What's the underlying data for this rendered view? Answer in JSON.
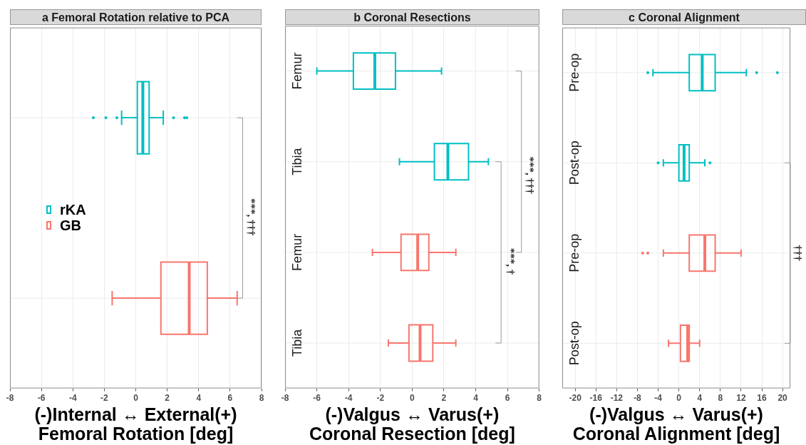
{
  "chart_data": [
    {
      "type": "box",
      "orientation": "horizontal",
      "title": "a Femoral Rotation relative to PCA",
      "xlabel": "(-)Internal ↔ External(+)\nFemoral Rotation [deg]",
      "categories": [
        null,
        null
      ],
      "xlim": [
        -8,
        8
      ],
      "xticks": [
        -8,
        -6,
        -4,
        -2,
        0,
        2,
        4,
        6,
        8
      ],
      "grid": true,
      "legend": "left",
      "series": [
        {
          "name": "rKA",
          "color": "#00bfc4",
          "boxes": [
            {
              "low": -0.9,
              "q1": 0.1,
              "median": 0.45,
              "q3": 0.85,
              "high": 1.75,
              "outliers": [
                -2.7,
                -1.9,
                -1.2,
                2.4,
                3.1,
                3.25
              ]
            },
            null
          ]
        },
        {
          "name": "GB",
          "color": "#f8766d",
          "boxes": [
            null,
            {
              "low": -1.5,
              "q1": 1.6,
              "median": 3.4,
              "q3": 4.55,
              "high": 6.45
            }
          ]
        }
      ],
      "annotations": [
        "***, †††"
      ]
    },
    {
      "type": "box",
      "orientation": "horizontal",
      "title": "b Coronal Resections",
      "xlabel": "(-)Valgus ↔ Varus(+)\nCoronal Resection [deg]",
      "categories": [
        "Femur",
        "Tibia",
        "Femur",
        "Tibia"
      ],
      "xlim": [
        -8,
        8
      ],
      "xticks": [
        -8,
        -6,
        -4,
        -2,
        0,
        2,
        4,
        6,
        8
      ],
      "grid": true,
      "series": [
        {
          "color": "#00bfc4",
          "boxes": [
            {
              "low": -6.0,
              "q1": -3.7,
              "median": -2.35,
              "q3": -1.05,
              "high": 1.85
            },
            {
              "low": -0.8,
              "q1": 1.4,
              "median": 2.25,
              "q3": 3.55,
              "high": 4.8
            },
            null,
            null
          ]
        },
        {
          "color": "#f8766d",
          "boxes": [
            null,
            null,
            {
              "low": -2.5,
              "q1": -0.7,
              "median": 0.35,
              "q3": 1.05,
              "high": 2.75
            },
            {
              "low": -1.5,
              "q1": -0.2,
              "median": 0.5,
              "q3": 1.3,
              "high": 2.75
            }
          ]
        }
      ],
      "annotations": [
        "***, †††",
        "***, †"
      ]
    },
    {
      "type": "box",
      "orientation": "horizontal",
      "title": "c Coronal Alignment",
      "xlabel": "(-)Valgus ↔ Varus(+)\nCoronal Alignment [deg]",
      "categories": [
        "Pre-op",
        "Post-op",
        "Pre-op",
        "Post-op"
      ],
      "xlim": [
        -22.5,
        21.5
      ],
      "xticks": [
        -20,
        -16,
        -12,
        -8,
        -4,
        0,
        4,
        8,
        12,
        16,
        20
      ],
      "grid": true,
      "series": [
        {
          "color": "#00bfc4",
          "boxes": [
            {
              "low": -5,
              "q1": 2,
              "median": 4.5,
              "q3": 7,
              "high": 13,
              "outliers": [
                -6,
                15,
                19
              ]
            },
            {
              "low": -3,
              "q1": 0,
              "median": 1,
              "q3": 2,
              "high": 5,
              "outliers": [
                -4,
                6
              ]
            },
            null,
            null
          ]
        },
        {
          "color": "#f8766d",
          "boxes": [
            null,
            null,
            {
              "low": -3,
              "q1": 2,
              "median": 5,
              "q3": 7,
              "high": 12,
              "outliers": [
                -7,
                -6
              ]
            },
            {
              "low": -2,
              "q1": 0.3,
              "median": 1.7,
              "q3": 2,
              "high": 4
            }
          ]
        }
      ],
      "annotations": [
        "†††"
      ]
    }
  ]
}
